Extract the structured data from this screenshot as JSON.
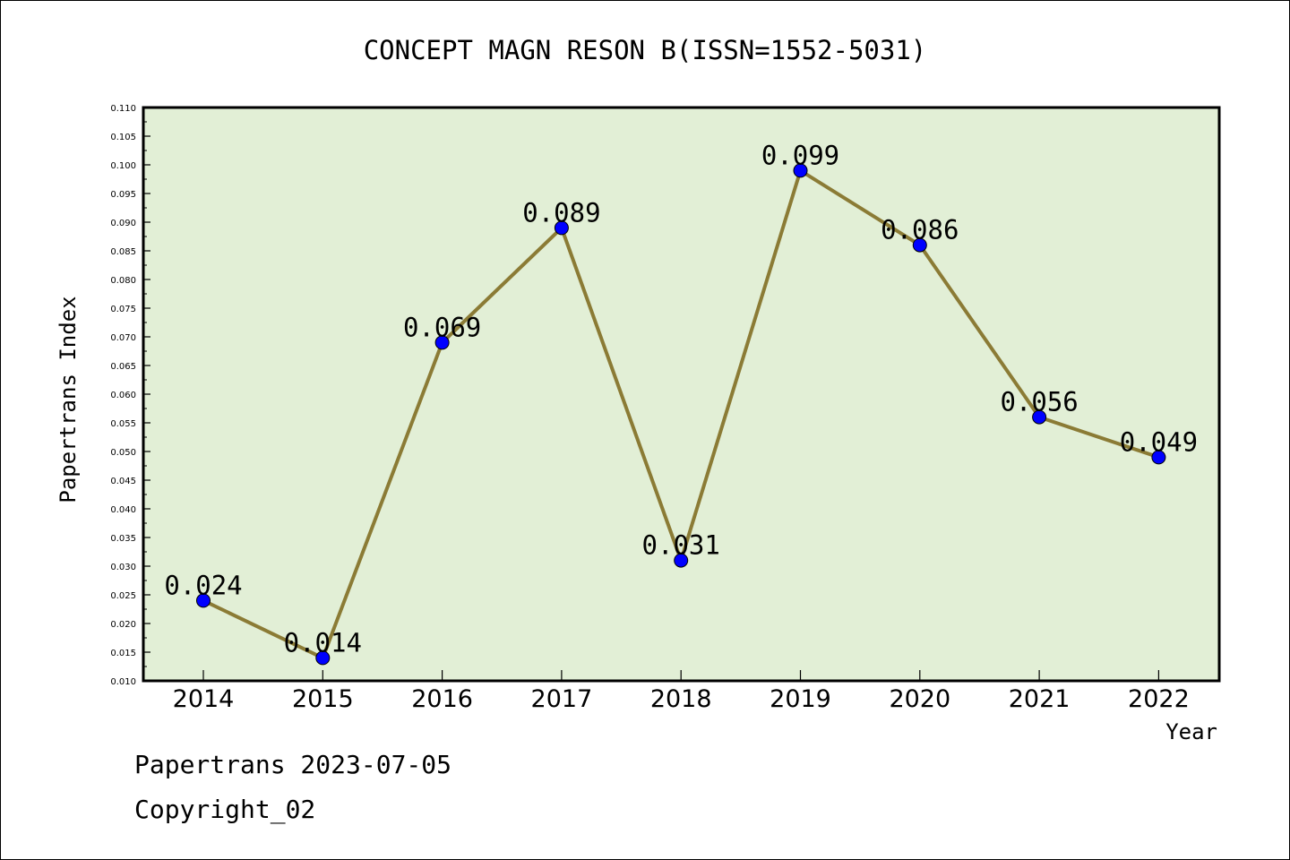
{
  "chart_data": {
    "type": "line",
    "title": "CONCEPT MAGN RESON B(ISSN=1552-5031)",
    "xlabel": "Year",
    "ylabel": "Papertrans Index",
    "categories": [
      "2014",
      "2015",
      "2016",
      "2017",
      "2018",
      "2019",
      "2020",
      "2021",
      "2022"
    ],
    "values": [
      0.024,
      0.014,
      0.069,
      0.089,
      0.031,
      0.099,
      0.086,
      0.056,
      0.049
    ],
    "data_labels": [
      "0.024",
      "0.014",
      "0.069",
      "0.089",
      "0.031",
      "0.099",
      "0.086",
      "0.056",
      "0.049"
    ],
    "ylim": [
      0.01,
      0.11
    ],
    "ytick_step": 0.005,
    "yticks": [
      "0.010",
      "0.015",
      "0.020",
      "0.025",
      "0.030",
      "0.035",
      "0.040",
      "0.045",
      "0.050",
      "0.055",
      "0.060",
      "0.065",
      "0.070",
      "0.075",
      "0.080",
      "0.085",
      "0.090",
      "0.095",
      "0.100",
      "0.105",
      "0.110"
    ],
    "grid": false,
    "legend": "none",
    "colors": {
      "plot_background": "#e2efd6",
      "line": "#8b7b35",
      "marker": "#0000ff"
    }
  },
  "footer": {
    "line1": "Papertrans 2023-07-05",
    "line2": "Copyright_02"
  }
}
